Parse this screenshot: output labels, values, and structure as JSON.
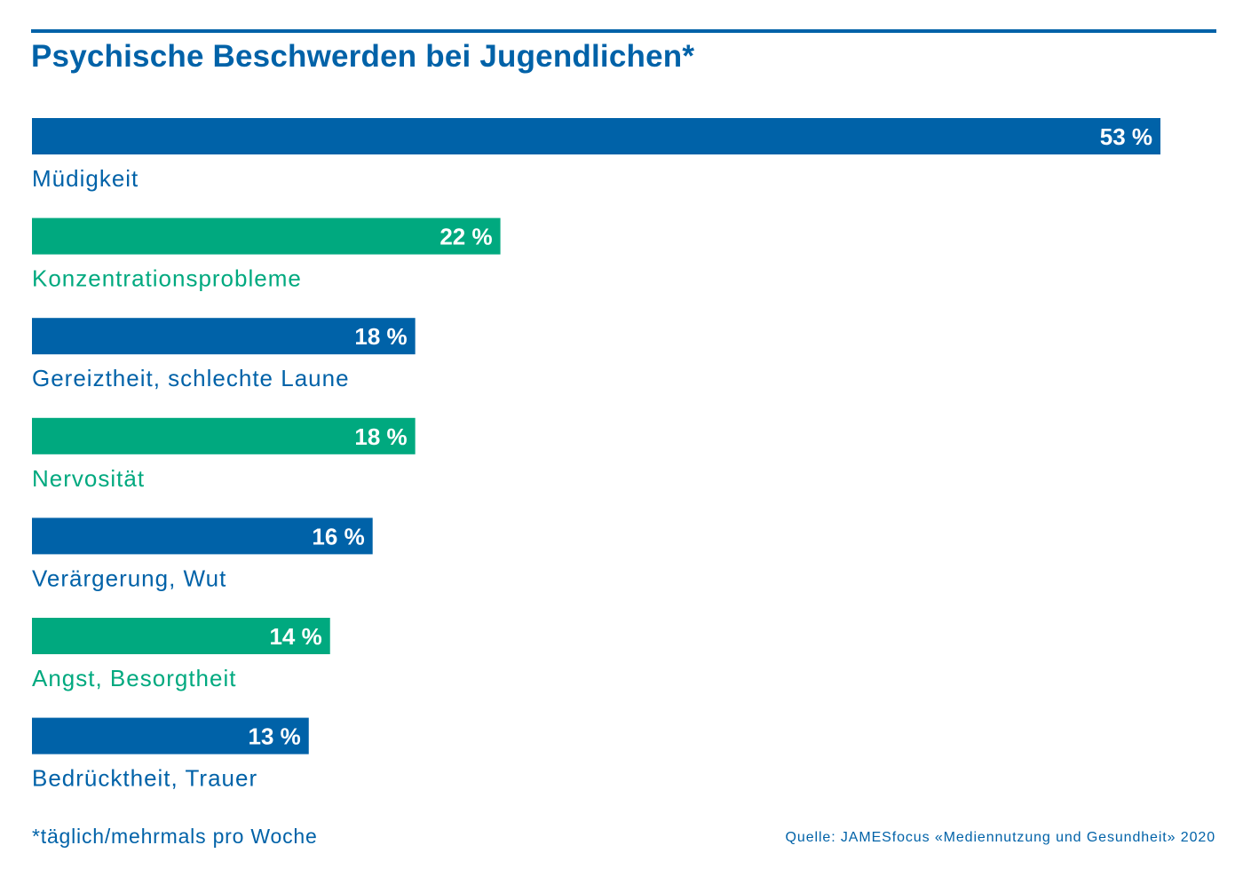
{
  "title": "Psychische Beschwerden bei Jugendlichen*",
  "footnote": "*täglich/mehrmals pro Woche",
  "source": "Quelle: JAMESfocus «Mediennutzung und Gesundheit» 2020",
  "colors": {
    "blue": "#0062a8",
    "green": "#00a97f",
    "label_text": "#ffffff",
    "background": "#ffffff"
  },
  "chart_data": {
    "type": "bar",
    "orientation": "horizontal",
    "unit": "%",
    "categories": [
      "Müdigkeit",
      "Konzentrationsprobleme",
      "Gereiztheit, schlechte Laune",
      "Nervosität",
      "Verärgerung, Wut",
      "Angst, Besorgtheit",
      "Bedrücktheit, Trauer"
    ],
    "values": [
      53,
      22,
      18,
      18,
      16,
      14,
      13
    ],
    "value_labels": [
      "53 %",
      "22 %",
      "18 %",
      "18 %",
      "16 %",
      "14 %",
      "13 %"
    ],
    "bar_colors": [
      "blue",
      "green",
      "blue",
      "green",
      "blue",
      "green",
      "blue"
    ],
    "title": "Psychische Beschwerden bei Jugendlichen*",
    "xlabel": "",
    "ylabel": "",
    "grid": false,
    "legend": "none"
  }
}
